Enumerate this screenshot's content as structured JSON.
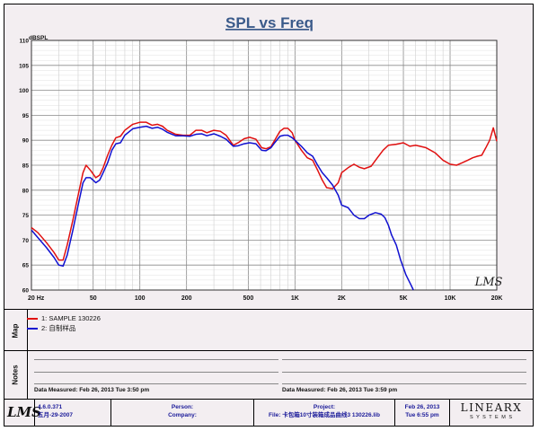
{
  "chart_data": {
    "type": "line",
    "title": "SPL vs Freq",
    "ylabel": "dBSPL",
    "xscale": "log",
    "xlim": [
      20,
      20000
    ],
    "ylim": [
      60,
      110
    ],
    "grid": true,
    "x_tick_labels": [
      "20 Hz",
      "50",
      "100",
      "200",
      "500",
      "1K",
      "2K",
      "5K",
      "10K",
      "20K"
    ],
    "y_tick_labels": [
      "60",
      "65",
      "70",
      "75",
      "80",
      "85",
      "90",
      "95",
      "100",
      "105",
      "110"
    ],
    "series": [
      {
        "name": "1: SAMPLE 130226",
        "color": "#e01010",
        "points": [
          [
            20,
            72.5
          ],
          [
            22,
            71.5
          ],
          [
            25,
            69.5
          ],
          [
            28,
            67.5
          ],
          [
            30,
            66
          ],
          [
            32,
            66
          ],
          [
            34,
            69
          ],
          [
            37,
            74
          ],
          [
            40,
            79
          ],
          [
            43,
            83.5
          ],
          [
            45,
            85
          ],
          [
            48,
            84
          ],
          [
            52,
            82.5
          ],
          [
            55,
            83
          ],
          [
            58,
            84.5
          ],
          [
            62,
            87
          ],
          [
            66,
            89
          ],
          [
            70,
            90.5
          ],
          [
            75,
            90.8
          ],
          [
            80,
            92
          ],
          [
            90,
            93.2
          ],
          [
            100,
            93.6
          ],
          [
            110,
            93.6
          ],
          [
            120,
            93
          ],
          [
            130,
            93.2
          ],
          [
            140,
            92.8
          ],
          [
            150,
            92
          ],
          [
            170,
            91.2
          ],
          [
            190,
            91
          ],
          [
            210,
            91
          ],
          [
            230,
            92
          ],
          [
            250,
            92
          ],
          [
            270,
            91.5
          ],
          [
            300,
            92
          ],
          [
            330,
            91.8
          ],
          [
            360,
            91
          ],
          [
            400,
            89
          ],
          [
            430,
            89.5
          ],
          [
            470,
            90.3
          ],
          [
            510,
            90.6
          ],
          [
            560,
            90.2
          ],
          [
            610,
            88.5
          ],
          [
            650,
            88.3
          ],
          [
            700,
            88.7
          ],
          [
            740,
            90
          ],
          [
            800,
            91.8
          ],
          [
            850,
            92.4
          ],
          [
            900,
            92.4
          ],
          [
            960,
            91.5
          ],
          [
            1000,
            90
          ],
          [
            1100,
            88
          ],
          [
            1200,
            86.5
          ],
          [
            1300,
            86
          ],
          [
            1400,
            84
          ],
          [
            1500,
            82
          ],
          [
            1600,
            80.5
          ],
          [
            1750,
            80.3
          ],
          [
            1900,
            81.5
          ],
          [
            2000,
            83.5
          ],
          [
            2200,
            84.5
          ],
          [
            2400,
            85.2
          ],
          [
            2600,
            84.6
          ],
          [
            2800,
            84.3
          ],
          [
            3100,
            84.8
          ],
          [
            3400,
            86.5
          ],
          [
            3700,
            88
          ],
          [
            4000,
            89
          ],
          [
            4500,
            89.2
          ],
          [
            5000,
            89.5
          ],
          [
            5500,
            88.8
          ],
          [
            6000,
            89
          ],
          [
            7000,
            88.5
          ],
          [
            8000,
            87.5
          ],
          [
            9000,
            86
          ],
          [
            10000,
            85.2
          ],
          [
            11000,
            85
          ],
          [
            12000,
            85.5
          ],
          [
            13000,
            86
          ],
          [
            14000,
            86.5
          ],
          [
            15000,
            86.8
          ],
          [
            16000,
            87
          ],
          [
            17000,
            88.5
          ],
          [
            18000,
            90
          ],
          [
            19000,
            92.5
          ],
          [
            20000,
            89.8
          ]
        ]
      },
      {
        "name": "2: 自制样品",
        "color": "#1010d0",
        "points": [
          [
            20,
            72
          ],
          [
            22,
            70.5
          ],
          [
            25,
            68.5
          ],
          [
            28,
            66.5
          ],
          [
            30,
            65
          ],
          [
            32,
            64.8
          ],
          [
            34,
            67
          ],
          [
            37,
            72
          ],
          [
            40,
            77
          ],
          [
            43,
            81.5
          ],
          [
            45,
            82.5
          ],
          [
            48,
            82.5
          ],
          [
            52,
            81.5
          ],
          [
            55,
            82
          ],
          [
            58,
            83.5
          ],
          [
            62,
            85.5
          ],
          [
            66,
            88
          ],
          [
            70,
            89.3
          ],
          [
            75,
            89.5
          ],
          [
            80,
            91
          ],
          [
            90,
            92.3
          ],
          [
            100,
            92.6
          ],
          [
            110,
            92.8
          ],
          [
            120,
            92.4
          ],
          [
            130,
            92.6
          ],
          [
            140,
            92.2
          ],
          [
            150,
            91.6
          ],
          [
            170,
            90.9
          ],
          [
            190,
            90.9
          ],
          [
            210,
            90.8
          ],
          [
            230,
            91.2
          ],
          [
            250,
            91.3
          ],
          [
            270,
            90.9
          ],
          [
            300,
            91.3
          ],
          [
            330,
            90.8
          ],
          [
            360,
            90.2
          ],
          [
            400,
            88.8
          ],
          [
            430,
            88.9
          ],
          [
            470,
            89.3
          ],
          [
            510,
            89.5
          ],
          [
            560,
            89.3
          ],
          [
            610,
            88
          ],
          [
            650,
            87.9
          ],
          [
            700,
            88.5
          ],
          [
            740,
            89.5
          ],
          [
            800,
            90.8
          ],
          [
            850,
            91
          ],
          [
            900,
            91
          ],
          [
            960,
            90.5
          ],
          [
            1000,
            90
          ],
          [
            1100,
            88.8
          ],
          [
            1200,
            87.5
          ],
          [
            1300,
            86.8
          ],
          [
            1400,
            85
          ],
          [
            1500,
            83.5
          ],
          [
            1600,
            82.5
          ],
          [
            1750,
            81
          ],
          [
            1900,
            79
          ],
          [
            2000,
            77
          ],
          [
            2200,
            76.5
          ],
          [
            2400,
            75
          ],
          [
            2600,
            74.3
          ],
          [
            2800,
            74.3
          ],
          [
            3000,
            75
          ],
          [
            3300,
            75.5
          ],
          [
            3600,
            75.2
          ],
          [
            3800,
            74.5
          ],
          [
            4000,
            73
          ],
          [
            4200,
            71
          ],
          [
            4500,
            69
          ],
          [
            4800,
            66
          ],
          [
            5200,
            63
          ],
          [
            5600,
            61
          ],
          [
            5800,
            60
          ]
        ]
      }
    ],
    "watermark": "LMS"
  },
  "map": {
    "label": "Map",
    "items": [
      {
        "label": "1: SAMPLE 130226",
        "color": "#e01010"
      },
      {
        "label": "2: 自制样品",
        "color": "#1010d0"
      }
    ]
  },
  "notes": {
    "label": "Notes",
    "left_measured": "Data Measured: Feb 26, 2013  Tue  3:50 pm",
    "right_measured": "Data Measured: Feb 26, 2013  Tue  3:59 pm"
  },
  "footer": {
    "logo": "LMS",
    "version": "4.6.0.371",
    "version_date": "五月-29-2007",
    "person_label": "Person:",
    "company_label": "Company:",
    "project_label": "Project:",
    "file_text": "File: 卡包箱10寸装箱成品曲线3 130226.lib",
    "date": "Feb 26, 2013",
    "time": "Tue  6:55 pm",
    "brand": "LINEARX",
    "brand_sub": "S Y S T E M S"
  }
}
